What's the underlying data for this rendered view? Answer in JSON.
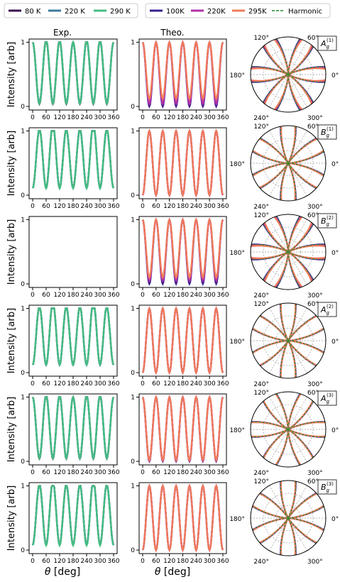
{
  "colors": {
    "exp_80": "#3b0f4f",
    "exp_220": "#3d7a9c",
    "exp_290": "#44bd82",
    "theo_100": "#3a1f8f",
    "theo_220": "#b32fa8",
    "theo_295": "#f07a5a",
    "harmonic": "#1f8a2a"
  },
  "legend_left": {
    "items": [
      {
        "label": "80 K",
        "color_key": "exp_80",
        "dashed": false
      },
      {
        "label": "220 K",
        "color_key": "exp_220",
        "dashed": false
      },
      {
        "label": "290 K",
        "color_key": "exp_290",
        "dashed": false
      }
    ]
  },
  "legend_right": {
    "items": [
      {
        "label": "100K",
        "color_key": "theo_100",
        "dashed": false
      },
      {
        "label": "220K",
        "color_key": "theo_220",
        "dashed": false
      },
      {
        "label": "295K",
        "color_key": "theo_295",
        "dashed": false
      },
      {
        "label": "Harmonic",
        "color_key": "harmonic",
        "dashed": true
      }
    ]
  },
  "column_titles": {
    "exp": "Exp.",
    "theo": "Theo."
  },
  "ylabel": "Intensity [arb]",
  "xlabel_symbol": "θ",
  "xlabel_unit": " [deg]",
  "polar_angle_labels": [
    "0°",
    "60°",
    "120°",
    "180°",
    "240°",
    "300°"
  ],
  "chart_data": {
    "type": "line",
    "x_label": "θ [deg]",
    "y_label": "Intensity [arb]",
    "x_ticks": [
      0,
      60,
      120,
      180,
      240,
      300,
      360
    ],
    "xlim": [
      0,
      360
    ],
    "y_ticks": [
      0,
      1
    ],
    "ylim": [
      0,
      1.05
    ],
    "rows": [
      {
        "mode_main": "A",
        "mode_sup": "(1)",
        "exp": {
          "present": true,
          "shape": "pos",
          "r": 0.5,
          "phase": 0,
          "variants": [
            0.74,
            0.65,
            0.82
          ]
        },
        "theo": {
          "shape": "pos",
          "variants": [
            [
              0.5,
              0.0
            ],
            [
              0.5,
              0.04
            ],
            [
              0.5,
              0.12
            ]
          ]
        },
        "polar_lobes": 3,
        "polar_phase": 0,
        "polar_center": 0.3
      },
      {
        "mode_main": "B",
        "mode_sup": "(1)",
        "exp": {
          "present": true,
          "shape": "neg",
          "r": 0.5,
          "phase": 0,
          "variants": [
            0.25,
            0.33,
            0.4
          ]
        },
        "theo": {
          "shape": "neg",
          "variants": [
            [
              0.5,
              0.0
            ],
            [
              0.5,
              0.0
            ],
            [
              0.5,
              0.0
            ]
          ]
        },
        "polar_lobes": 3,
        "polar_phase": 30,
        "polar_center": 0.15
      },
      {
        "mode_main": "B",
        "mode_sup": "(2)",
        "exp": {
          "present": false
        },
        "theo": {
          "shape": "pos",
          "variants": [
            [
              0.5,
              0.0
            ],
            [
              0.5,
              0.05
            ],
            [
              0.5,
              0.1
            ]
          ]
        },
        "polar_lobes": 3,
        "polar_phase": 0,
        "polar_center": 0.3
      },
      {
        "mode_main": "A",
        "mode_sup": "(2)",
        "exp": {
          "present": true,
          "shape": "neg",
          "r": 0.12,
          "phase": 0,
          "variants": [
            0.2,
            0.25,
            0.3
          ]
        },
        "theo": {
          "shape": "neg",
          "variants": [
            [
              0.5,
              0.0
            ],
            [
              0.5,
              0.0
            ],
            [
              0.5,
              0.0
            ]
          ]
        },
        "polar_lobes": 3,
        "polar_phase": 30,
        "polar_center": 0.1
      },
      {
        "mode_main": "A",
        "mode_sup": "(3)",
        "exp": {
          "present": true,
          "shape": "pos",
          "r": 0.5,
          "phase": 0,
          "variants": [
            0.72,
            0.67,
            0.8
          ]
        },
        "theo": {
          "shape": "pos",
          "variants": [
            [
              0.5,
              0.0
            ],
            [
              0.5,
              0.01
            ],
            [
              0.5,
              0.02
            ]
          ]
        },
        "polar_lobes": 3,
        "polar_phase": 0,
        "polar_center": 0.12
      },
      {
        "mode_main": "B",
        "mode_sup": "(3)",
        "exp": {
          "present": true,
          "shape": "neg",
          "r": 0.5,
          "phase": 0,
          "variants": [
            0.45,
            0.55,
            0.62
          ]
        },
        "theo": {
          "shape": "neg",
          "variants": [
            [
              0.5,
              0.0
            ],
            [
              0.5,
              0.0
            ],
            [
              0.5,
              0.0
            ]
          ]
        },
        "polar_lobes": 3,
        "polar_phase": 30,
        "polar_center": 0.12
      }
    ]
  }
}
